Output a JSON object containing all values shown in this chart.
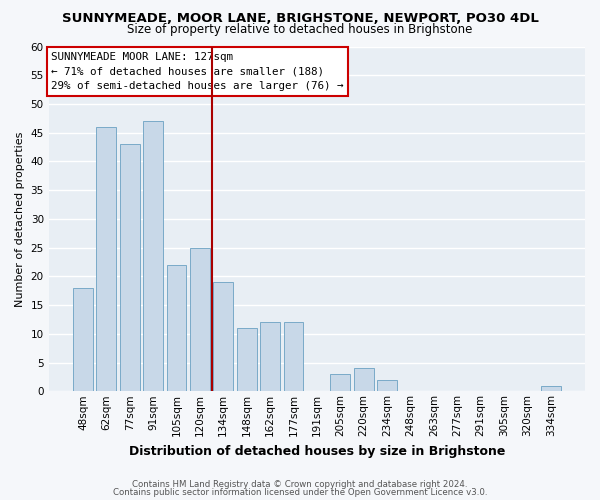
{
  "title": "SUNNYMEADE, MOOR LANE, BRIGHSTONE, NEWPORT, PO30 4DL",
  "subtitle": "Size of property relative to detached houses in Brighstone",
  "xlabel": "Distribution of detached houses by size in Brighstone",
  "ylabel": "Number of detached properties",
  "bar_labels": [
    "48sqm",
    "62sqm",
    "77sqm",
    "91sqm",
    "105sqm",
    "120sqm",
    "134sqm",
    "148sqm",
    "162sqm",
    "177sqm",
    "191sqm",
    "205sqm",
    "220sqm",
    "234sqm",
    "248sqm",
    "263sqm",
    "277sqm",
    "291sqm",
    "305sqm",
    "320sqm",
    "334sqm"
  ],
  "bar_values": [
    18,
    46,
    43,
    47,
    22,
    25,
    19,
    11,
    12,
    12,
    0,
    3,
    4,
    2,
    0,
    0,
    0,
    0,
    0,
    0,
    1
  ],
  "bar_color": "#c8d8e8",
  "bar_edge_color": "#7aaac8",
  "reference_line_x": 5.5,
  "reference_line_color": "#aa0000",
  "ylim": [
    0,
    60
  ],
  "yticks": [
    0,
    5,
    10,
    15,
    20,
    25,
    30,
    35,
    40,
    45,
    50,
    55,
    60
  ],
  "annotation_title": "SUNNYMEADE MOOR LANE: 127sqm",
  "annotation_line1": "← 71% of detached houses are smaller (188)",
  "annotation_line2": "29% of semi-detached houses are larger (76) →",
  "annotation_box_color": "#ffffff",
  "annotation_box_edge": "#cc0000",
  "footer1": "Contains HM Land Registry data © Crown copyright and database right 2024.",
  "footer2": "Contains public sector information licensed under the Open Government Licence v3.0.",
  "plot_bg_color": "#e8eef4",
  "fig_bg_color": "#f5f7fa",
  "grid_color": "#ffffff",
  "title_fontsize": 9.5,
  "subtitle_fontsize": 8.5,
  "ylabel_fontsize": 8.0,
  "xlabel_fontsize": 9.0,
  "tick_fontsize": 7.5,
  "annotation_fontsize": 7.8,
  "footer_fontsize": 6.2
}
